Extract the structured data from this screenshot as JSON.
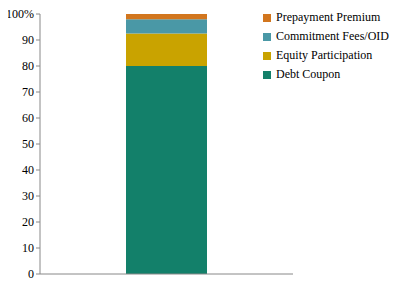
{
  "chart_data": {
    "type": "bar",
    "stacked": true,
    "categories": [
      null
    ],
    "series": [
      {
        "name": "Debt Coupon",
        "color": "#13806a",
        "values": [
          80
        ]
      },
      {
        "name": "Equity Participation",
        "color": "#c9a300",
        "values": [
          12.5
        ]
      },
      {
        "name": "Commitment Fees/OID",
        "color": "#4a98a6",
        "values": [
          5.5
        ]
      },
      {
        "name": "Prepayment Premium",
        "color": "#d2761e",
        "values": [
          2
        ]
      }
    ],
    "ylim": [
      0,
      100
    ],
    "yticks": [
      0,
      10,
      20,
      30,
      40,
      50,
      60,
      70,
      80,
      90,
      {
        "value": 100,
        "label": "100%"
      }
    ],
    "legend": "upper right",
    "grid": false
  }
}
